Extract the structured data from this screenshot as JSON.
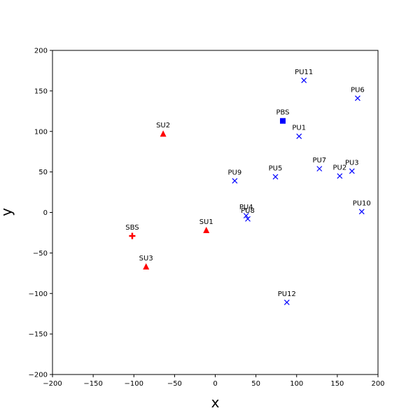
{
  "chart_data": {
    "type": "scatter",
    "title": "",
    "xlabel": "x",
    "ylabel": "y",
    "xlim": [
      -200,
      200
    ],
    "ylim": [
      -200,
      200
    ],
    "xticks": [
      -200,
      -150,
      -100,
      -50,
      0,
      50,
      100,
      150,
      200
    ],
    "yticks": [
      -200,
      -150,
      -100,
      -50,
      0,
      50,
      100,
      150,
      200
    ],
    "grid": false,
    "series": [
      {
        "marker": "square",
        "color": "#0000ff",
        "points": [
          {
            "label": "PBS",
            "x": 83,
            "y": 113
          }
        ]
      },
      {
        "marker": "x",
        "color": "#0000ff",
        "points": [
          {
            "label": "PU1",
            "x": 103,
            "y": 94
          },
          {
            "label": "PU2",
            "x": 153,
            "y": 45
          },
          {
            "label": "PU3",
            "x": 168,
            "y": 51
          },
          {
            "label": "PU4",
            "x": 38,
            "y": -4
          },
          {
            "label": "PU5",
            "x": 74,
            "y": 44
          },
          {
            "label": "PU6",
            "x": 175,
            "y": 141
          },
          {
            "label": "PU7",
            "x": 128,
            "y": 54
          },
          {
            "label": "PU8",
            "x": 40,
            "y": -8
          },
          {
            "label": "PU9",
            "x": 24,
            "y": 39
          },
          {
            "label": "PU10",
            "x": 180,
            "y": 1
          },
          {
            "label": "PU11",
            "x": 109,
            "y": 163
          },
          {
            "label": "PU12",
            "x": 88,
            "y": -111
          }
        ]
      },
      {
        "marker": "plus",
        "color": "#ff0000",
        "points": [
          {
            "label": "SBS",
            "x": -102,
            "y": -29
          }
        ]
      },
      {
        "marker": "triangle",
        "color": "#ff0000",
        "points": [
          {
            "label": "SU1",
            "x": -11,
            "y": -22
          },
          {
            "label": "SU2",
            "x": -64,
            "y": 97
          },
          {
            "label": "SU3",
            "x": -85,
            "y": -67
          }
        ]
      }
    ]
  }
}
